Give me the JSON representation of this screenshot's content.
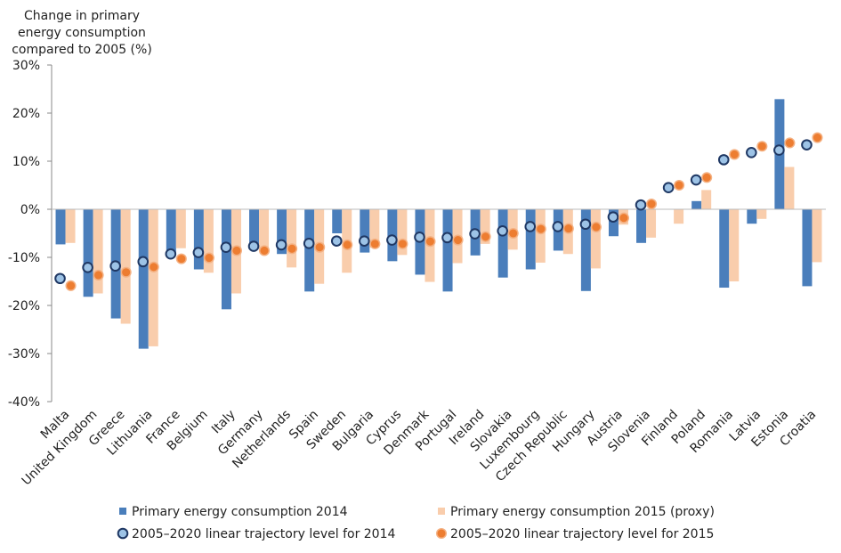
{
  "chart_data": {
    "type": "bar",
    "ylabel": [
      "Change in primary",
      "energy consumption",
      "compared to 2005 (%)"
    ],
    "ylim": [
      -40,
      30
    ],
    "yticks": [
      -40,
      -30,
      -20,
      -10,
      0,
      10,
      20,
      30
    ],
    "ytick_labels": [
      "-40%",
      "-30%",
      "-20%",
      "-10%",
      "0%",
      "10%",
      "20%",
      "30%"
    ],
    "grid": false,
    "legend_position": "bottom",
    "categories": [
      "Malta",
      "United Kingdom",
      "Greece",
      "Lithuania",
      "France",
      "Belgium",
      "Italy",
      "Germany",
      "Netherlands",
      "Spain",
      "Sweden",
      "Bulgaria",
      "Cyprus",
      "Denmark",
      "Portugal",
      "Ireland",
      "Slovakia",
      "Luxembourg",
      "Czech Republic",
      "Hungary",
      "Austria",
      "Slovenia",
      "Finland",
      "Poland",
      "Romania",
      "Latvia",
      "Estonia",
      "Croatia"
    ],
    "series": [
      {
        "name": "Primary energy consumption 2014",
        "kind": "bar",
        "color": "#4a7ebb",
        "values": [
          -7.3,
          -18.2,
          -22.7,
          -29.0,
          -9.0,
          -12.5,
          -20.8,
          -8.0,
          -9.3,
          -17.1,
          -5.0,
          -9.0,
          -10.8,
          -13.6,
          -17.1,
          -9.6,
          -14.2,
          -12.5,
          -8.6,
          -17.0,
          -5.6,
          -7.0,
          0.0,
          1.7,
          -16.3,
          -3.0,
          22.9,
          -16.0
        ]
      },
      {
        "name": "Primary energy consumption 2015 (proxy)",
        "kind": "bar",
        "color": "#f9cdac",
        "values": [
          -7.0,
          -17.5,
          -23.8,
          -28.5,
          -8.1,
          -13.2,
          -17.5,
          -8.4,
          -12.1,
          -15.5,
          -13.2,
          -8.0,
          -9.5,
          -15.1,
          -11.2,
          -7.2,
          -8.4,
          -11.1,
          -9.3,
          -12.3,
          -3.2,
          -5.9,
          -3.0,
          4.0,
          -15.0,
          -2.0,
          8.8,
          -11.0
        ]
      },
      {
        "name": "2005–2020 linear trajectory level for 2014",
        "kind": "marker",
        "color": "#9dc3e6",
        "edge": "#1f3864",
        "values": [
          -14.4,
          -12.1,
          -11.8,
          -10.9,
          -9.3,
          -9.0,
          -7.9,
          -7.7,
          -7.4,
          -7.1,
          -6.6,
          -6.6,
          -6.4,
          -5.8,
          -5.9,
          -5.1,
          -4.5,
          -3.6,
          -3.6,
          -3.1,
          -1.6,
          0.9,
          4.5,
          6.1,
          10.3,
          11.8,
          12.3,
          13.4
        ]
      },
      {
        "name": "2005–2020 linear trajectory level for 2015",
        "kind": "marker",
        "color": "#ed7d31",
        "edge": "#f4b183",
        "values": [
          -15.9,
          -13.7,
          -13.1,
          -12.0,
          -10.3,
          -10.1,
          -8.6,
          -8.6,
          -8.2,
          -7.9,
          -7.4,
          -7.2,
          -7.2,
          -6.7,
          -6.4,
          -5.7,
          -5.0,
          -4.1,
          -4.0,
          -3.7,
          -1.8,
          1.1,
          5.0,
          6.6,
          11.4,
          13.1,
          13.8,
          14.9
        ]
      }
    ]
  }
}
